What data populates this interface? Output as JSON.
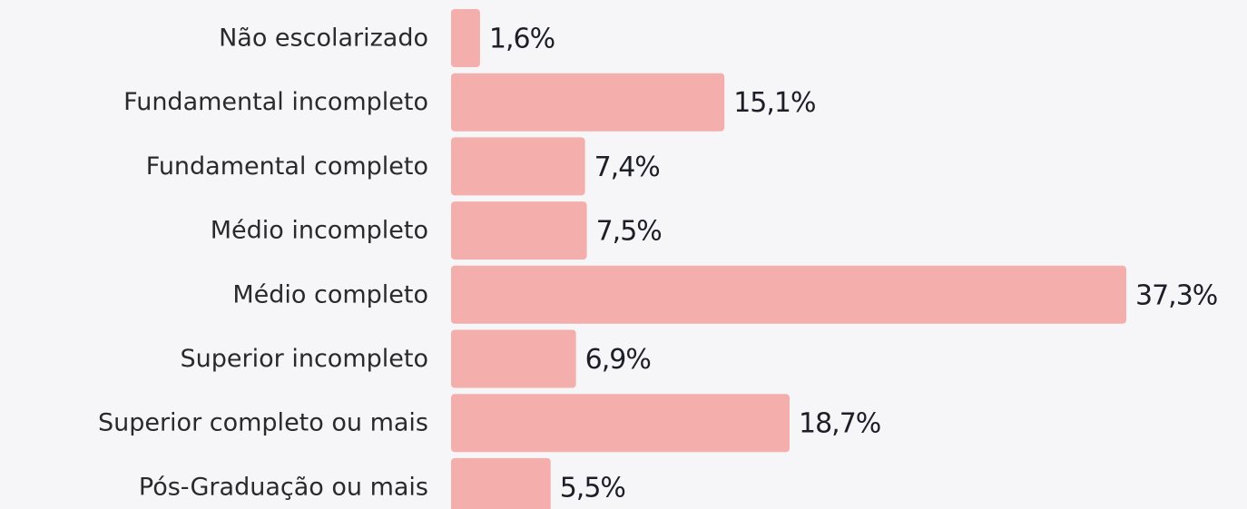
{
  "chart_data": {
    "type": "barh",
    "categories": [
      "Não escolarizado",
      "Fundamental incompleto",
      "Fundamental completo",
      "Médio incompleto",
      "Médio completo",
      "Superior incompleto",
      "Superior completo ou mais",
      "Pós-Graduação ou mais"
    ],
    "values": [
      1.6,
      15.1,
      7.4,
      7.5,
      37.3,
      6.9,
      18.7,
      5.5
    ],
    "value_labels": [
      "1,6%",
      "15,1%",
      "7,4%",
      "7,5%",
      "37,3%",
      "6,9%",
      "18,7%",
      "5,5%"
    ],
    "color": "#f4aeab"
  }
}
